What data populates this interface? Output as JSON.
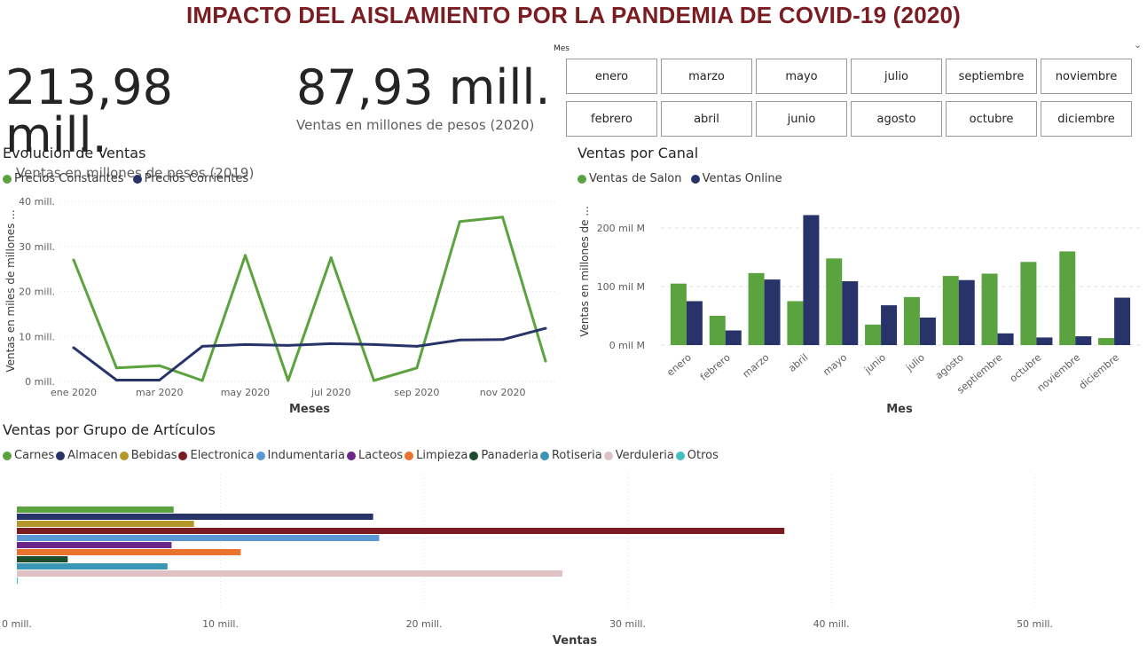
{
  "title": "IMPACTO DEL AISLAMIENTO POR LA PANDEMIA DE COVID-19 (2020)",
  "kpis": [
    {
      "value": "213,98 mill.",
      "label": "Ventas en millones de pesos (2019)"
    },
    {
      "value": "87,93 mill.",
      "label": "Ventas en millones de pesos (2020)"
    }
  ],
  "slicer": {
    "header": "Mes",
    "chevron_icon": "chevron-down-icon",
    "months": [
      "enero",
      "marzo",
      "mayo",
      "julio",
      "septiembre",
      "noviembre",
      "febrero",
      "abril",
      "junio",
      "agosto",
      "octubre",
      "diciembre"
    ]
  },
  "colors": {
    "green": "#5aa33e",
    "navy": "#283469",
    "title": "#7a1c21"
  },
  "chart_data": [
    {
      "type": "line",
      "title": "Evolución de Ventas",
      "xlabel": "Meses",
      "ylabel": "Ventas en miles de millones ...",
      "ylim": [
        0,
        40
      ],
      "yticks": [
        "0 mill.",
        "10 mill.",
        "20 mill.",
        "30 mill.",
        "40 mill."
      ],
      "xtick_labels": [
        "ene 2020",
        "mar 2020",
        "may 2020",
        "jul 2020",
        "sep 2020",
        "nov 2020"
      ],
      "x": [
        "2020-01",
        "2020-02",
        "2020-03",
        "2020-04",
        "2020-05",
        "2020-06",
        "2020-07",
        "2020-08",
        "2020-09",
        "2020-10",
        "2020-11",
        "2020-12"
      ],
      "legend_position": "top-left",
      "grid": true,
      "series": [
        {
          "name": "Precios Constantes",
          "color": "#5aa33e",
          "values": [
            27,
            3,
            3.5,
            0.2,
            28,
            0.2,
            27.5,
            0.2,
            3,
            35.5,
            36.5,
            4.5
          ]
        },
        {
          "name": "Precios Corrientes",
          "color": "#283469",
          "values": [
            7.5,
            0.3,
            0.3,
            7.8,
            8.2,
            8,
            8.4,
            8.2,
            7.8,
            9.2,
            9.3,
            11.8
          ]
        }
      ]
    },
    {
      "type": "bar",
      "title": "Ventas por Canal",
      "xlabel": "Mes",
      "ylabel": "Ventas en millones de ...",
      "ylim": [
        0,
        220
      ],
      "yticks": [
        "0 mil M",
        "100 mil M",
        "200 mil M"
      ],
      "categories": [
        "enero",
        "febrero",
        "marzo",
        "abril",
        "mayo",
        "junio",
        "julio",
        "agosto",
        "septiembre",
        "octubre",
        "noviembre",
        "diciembre"
      ],
      "legend_position": "top-left",
      "grid": true,
      "series": [
        {
          "name": "Ventas de Salon",
          "color": "#5aa33e",
          "values": [
            105,
            50,
            123,
            75,
            148,
            35,
            82,
            118,
            122,
            142,
            160,
            12
          ]
        },
        {
          "name": "Ventas Online",
          "color": "#283469",
          "values": [
            75,
            25,
            112,
            222,
            109,
            68,
            47,
            111,
            20,
            13,
            15,
            81
          ]
        }
      ]
    },
    {
      "type": "bar",
      "orientation": "horizontal",
      "title": "Ventas por Grupo de Artículos",
      "xlabel": "Ventas",
      "xlim": [
        0,
        55
      ],
      "xticks": [
        "0 mill.",
        "10 mill.",
        "20 mill.",
        "30 mill.",
        "40 mill.",
        "50 mill."
      ],
      "legend_position": "top-left",
      "grid": true,
      "series": [
        {
          "name": "Carnes",
          "color": "#5aa33e",
          "value": 7.7
        },
        {
          "name": "Almacen",
          "color": "#283469",
          "value": 17.5
        },
        {
          "name": "Bebidas",
          "color": "#b3972a",
          "value": 8.7
        },
        {
          "name": "Electronica",
          "color": "#7a1c21",
          "value": 37.7
        },
        {
          "name": "Indumentaria",
          "color": "#5b97d5",
          "value": 17.8
        },
        {
          "name": "Lacteos",
          "color": "#6a2789",
          "value": 7.6
        },
        {
          "name": "Limpieza",
          "color": "#e9732c",
          "value": 11
        },
        {
          "name": "Panaderia",
          "color": "#1d4b2e",
          "value": 2.5
        },
        {
          "name": "Rotiseria",
          "color": "#3a96b5",
          "value": 7.4
        },
        {
          "name": "Verduleria",
          "color": "#e0c1c4",
          "value": 26.8
        },
        {
          "name": "Otros",
          "color": "#45c0c0",
          "value": 0.05
        }
      ]
    }
  ]
}
